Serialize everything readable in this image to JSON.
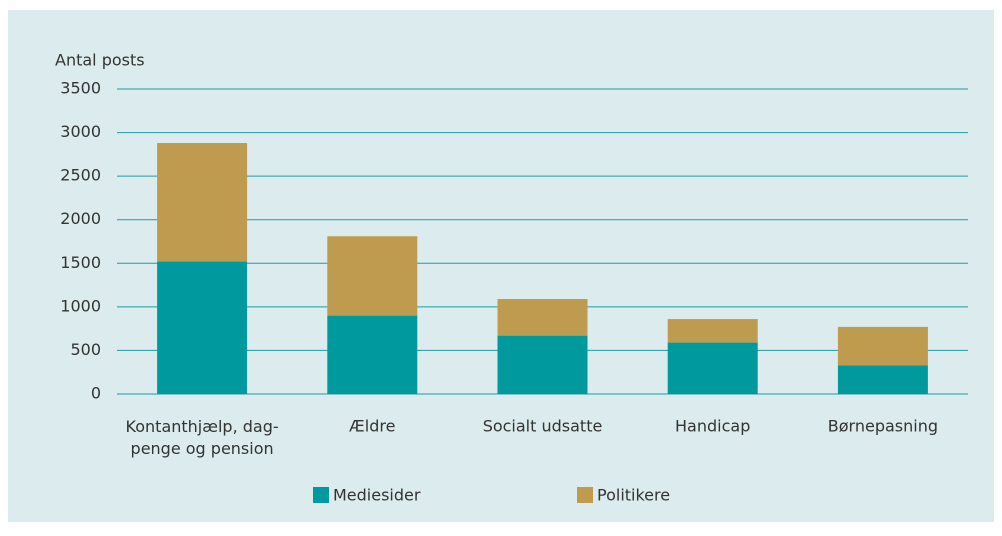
{
  "chart_data": {
    "type": "stacked_bar",
    "y_label": "Antal posts",
    "categories": [
      "Kontanthjælp, dag-\npenge og pension",
      "Ældre",
      "Socialt udsatte",
      "Handicap",
      "Børnepasning"
    ],
    "series": [
      {
        "name": "Mediesider",
        "color": "#009a9e",
        "values": [
          1520,
          900,
          670,
          590,
          330
        ]
      },
      {
        "name": "Politikere",
        "color": "#bf9b50",
        "values": [
          1360,
          910,
          420,
          270,
          440
        ]
      }
    ],
    "ylim": [
      0,
      3500
    ],
    "yticks": [
      0,
      500,
      1000,
      1500,
      2000,
      2500,
      3000,
      3500
    ],
    "grid": true
  }
}
